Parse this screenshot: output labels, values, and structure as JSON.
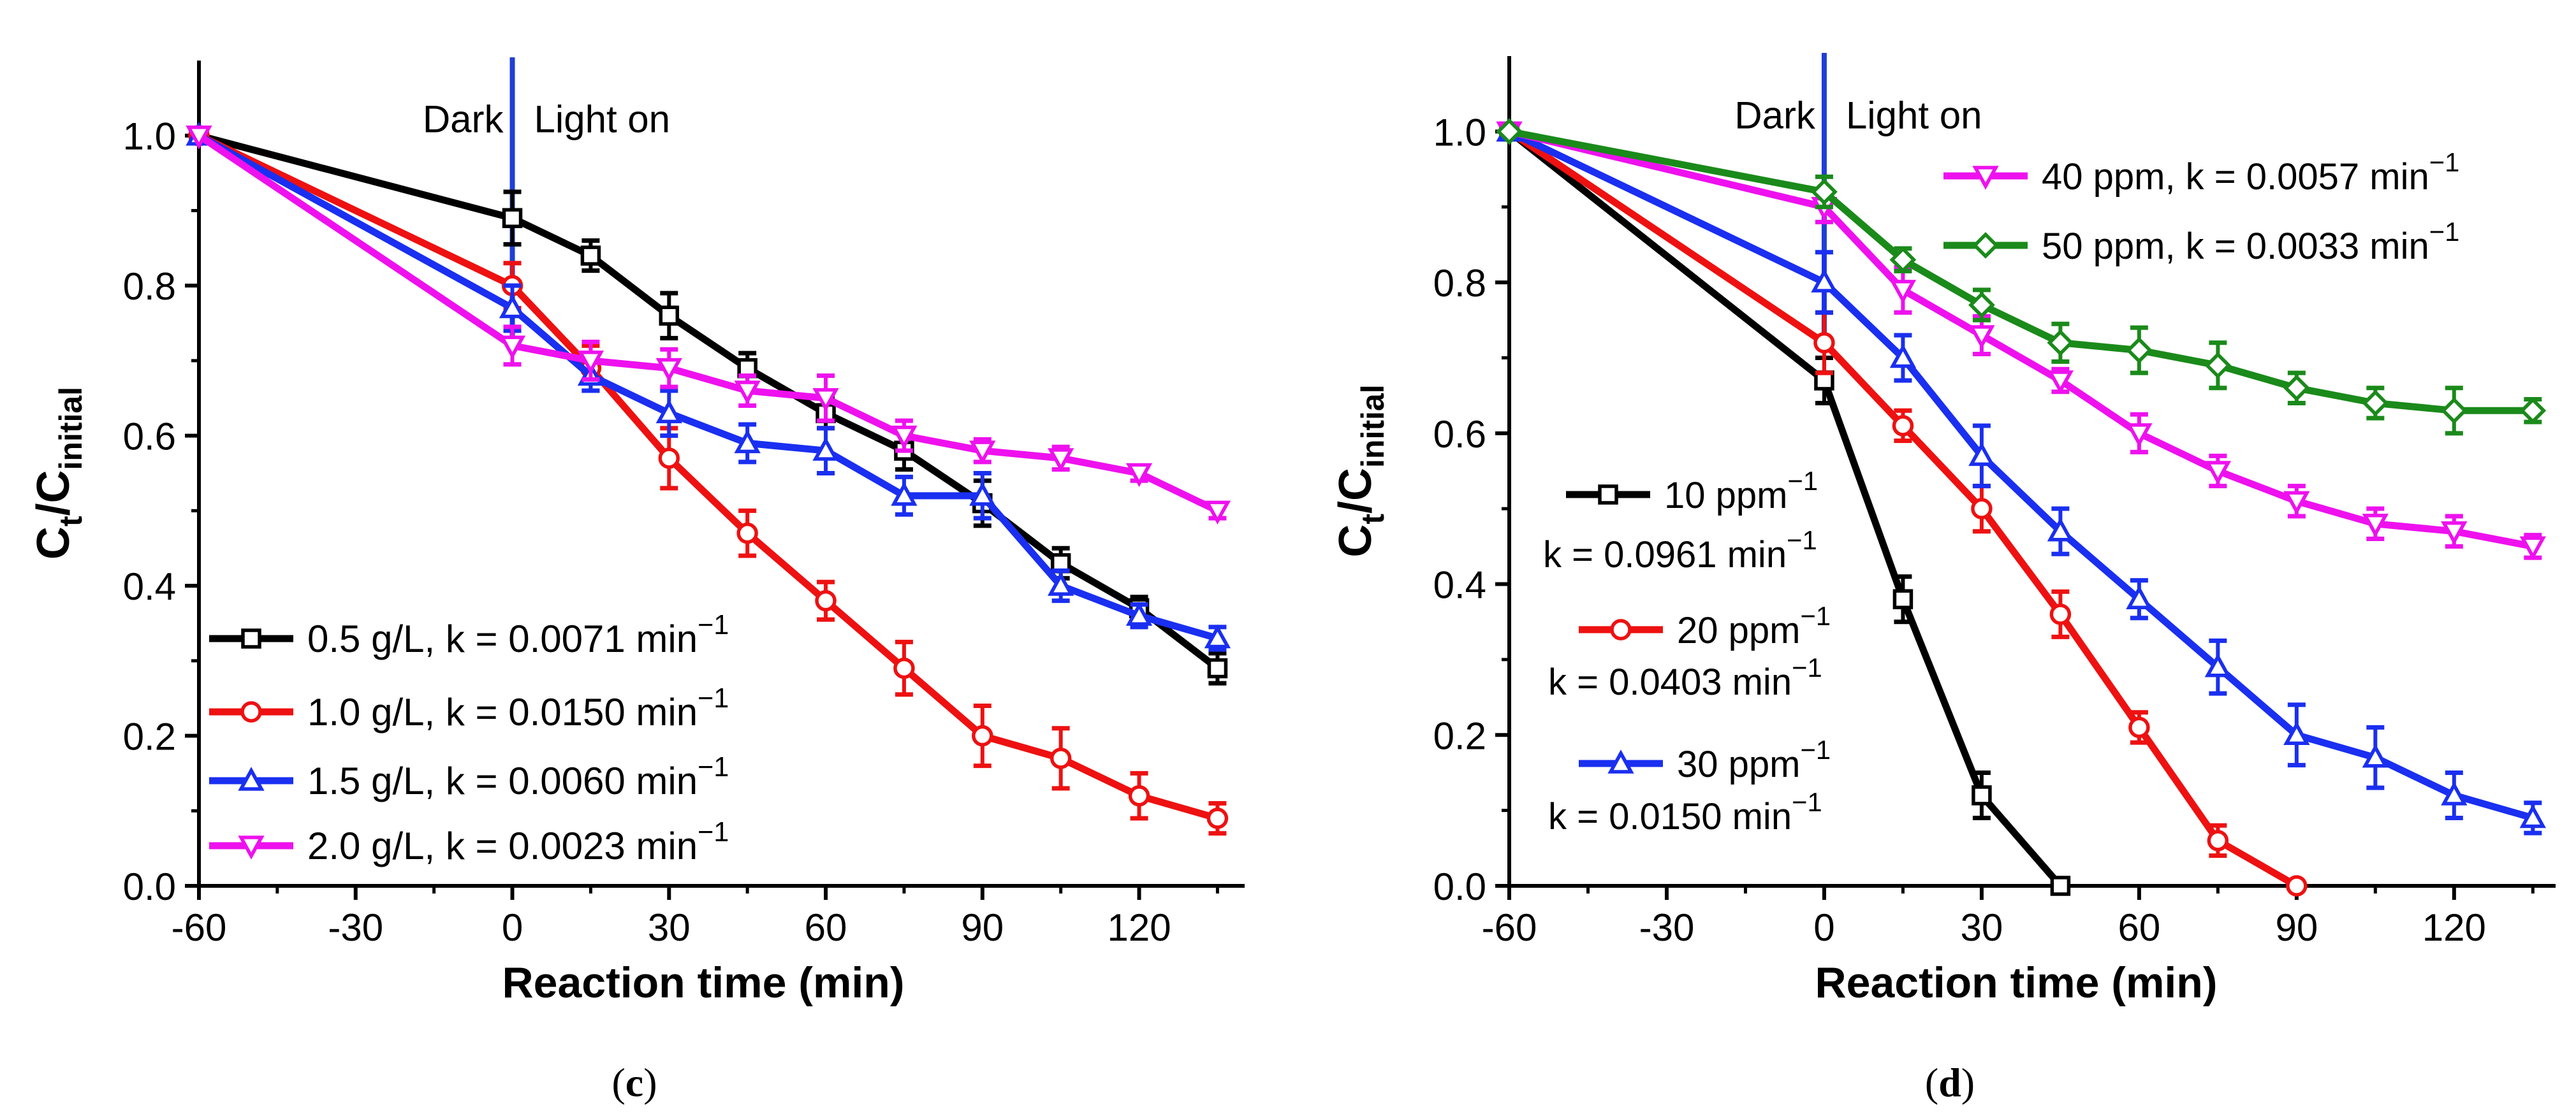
{
  "chart_data": [
    {
      "panel_label": "c",
      "type": "line",
      "xlabel": "Reaction time (min)",
      "ylabel": "C_t/C_initial",
      "ylabel_parts": {
        "main": "C",
        "sub1": "t",
        "slash": "/C",
        "sub2": "initial"
      },
      "xlim": [
        -60,
        138
      ],
      "ylim": [
        0,
        1.1
      ],
      "xticks": [
        -60,
        -30,
        0,
        30,
        60,
        90,
        120
      ],
      "yticks": [
        0.0,
        0.2,
        0.4,
        0.6,
        0.8,
        1.0
      ],
      "ytick_labels": [
        "0.0",
        "0.2",
        "0.4",
        "0.6",
        "0.8",
        "1.0"
      ],
      "annotations": {
        "dark": "Dark",
        "light": "Light on",
        "divider_x": 0,
        "divider_color": "#1f3fd6"
      },
      "legend_placement": "bottom-left",
      "series": [
        {
          "name": "0.5 g/L, k = 0.0071 min",
          "name_sup": "−1",
          "color": "#000000",
          "marker": "square",
          "x": [
            -60,
            0,
            15,
            30,
            45,
            60,
            75,
            90,
            105,
            120,
            135
          ],
          "y": [
            1.0,
            0.89,
            0.84,
            0.76,
            0.69,
            0.63,
            0.58,
            0.51,
            0.43,
            0.37,
            0.29
          ],
          "err": [
            0,
            0.035,
            0.02,
            0.03,
            0.02,
            0.02,
            0.025,
            0.03,
            0.02,
            0.015,
            0.02
          ]
        },
        {
          "name": "1.0 g/L, k = 0.0150 min",
          "name_sup": "−1",
          "color": "#ee1111",
          "marker": "circle",
          "x": [
            -60,
            0,
            15,
            30,
            45,
            60,
            75,
            90,
            105,
            120,
            135
          ],
          "y": [
            1.0,
            0.8,
            0.69,
            0.57,
            0.47,
            0.38,
            0.29,
            0.2,
            0.17,
            0.12,
            0.09
          ],
          "err": [
            0,
            0.03,
            0.03,
            0.04,
            0.03,
            0.025,
            0.035,
            0.04,
            0.04,
            0.03,
            0.02
          ]
        },
        {
          "name": "1.5 g/L, k = 0.0060 min",
          "name_sup": "−1",
          "color": "#1a2ff0",
          "marker": "triangle-up",
          "x": [
            -60,
            0,
            15,
            30,
            45,
            60,
            75,
            90,
            105,
            120,
            135
          ],
          "y": [
            1.0,
            0.77,
            0.68,
            0.63,
            0.59,
            0.58,
            0.52,
            0.52,
            0.4,
            0.36,
            0.33
          ],
          "err": [
            0,
            0.03,
            0.02,
            0.03,
            0.025,
            0.03,
            0.025,
            0.03,
            0.02,
            0.015,
            0.015
          ]
        },
        {
          "name": "2.0 g/L, k = 0.0023 min",
          "name_sup": "−1",
          "color": "#ee11ee",
          "marker": "triangle-down",
          "x": [
            -60,
            0,
            15,
            30,
            45,
            60,
            75,
            90,
            105,
            120,
            135
          ],
          "y": [
            1.0,
            0.72,
            0.7,
            0.69,
            0.66,
            0.65,
            0.6,
            0.58,
            0.57,
            0.55,
            0.5
          ],
          "err": [
            0,
            0.025,
            0.025,
            0.025,
            0.02,
            0.03,
            0.02,
            0.015,
            0.015,
            0.01,
            0.01
          ]
        }
      ]
    },
    {
      "panel_label": "d",
      "type": "line",
      "xlabel": "Reaction time (min)",
      "ylabel": "C_t/C_initial",
      "ylabel_parts": {
        "main": "C",
        "sub1": "t",
        "slash": "/C",
        "sub2": "initial"
      },
      "xlim": [
        -60,
        138
      ],
      "ylim": [
        0,
        1.1
      ],
      "xticks": [
        -60,
        -30,
        0,
        30,
        60,
        90,
        120
      ],
      "yticks": [
        0.0,
        0.2,
        0.4,
        0.6,
        0.8,
        1.0
      ],
      "ytick_labels": [
        "0.0",
        "0.2",
        "0.4",
        "0.6",
        "0.8",
        "1.0"
      ],
      "annotations": {
        "dark": "Dark",
        "light": "Light on",
        "divider_x": 0,
        "divider_color": "#1f3fd6"
      },
      "legend_placement": "left (three entries) and top-right (two entries)",
      "series": [
        {
          "name": "10 ppm",
          "k_text": "k = 0.0961 min",
          "name_sup": "−1",
          "color": "#000000",
          "marker": "square",
          "x": [
            -60,
            0,
            15,
            30,
            45
          ],
          "y": [
            1.0,
            0.67,
            0.38,
            0.12,
            0.0
          ],
          "err": [
            0,
            0.03,
            0.03,
            0.03,
            0.01
          ]
        },
        {
          "name": "20 ppm",
          "k_text": "k = 0.0403 min",
          "name_sup": "−1",
          "color": "#ee1111",
          "marker": "circle",
          "x": [
            -60,
            0,
            15,
            30,
            45,
            60,
            75,
            90
          ],
          "y": [
            1.0,
            0.72,
            0.61,
            0.5,
            0.36,
            0.21,
            0.06,
            0.0
          ],
          "err": [
            0,
            0.04,
            0.02,
            0.03,
            0.03,
            0.02,
            0.02,
            0.005
          ]
        },
        {
          "name": "30 ppm",
          "k_text": "k = 0.0150 min",
          "name_sup": "−1",
          "color": "#1a2ff0",
          "marker": "triangle-up",
          "x": [
            -60,
            0,
            15,
            30,
            45,
            60,
            75,
            90,
            105,
            120,
            135
          ],
          "y": [
            1.0,
            0.8,
            0.7,
            0.57,
            0.47,
            0.38,
            0.29,
            0.2,
            0.17,
            0.12,
            0.09
          ],
          "err": [
            0,
            0.04,
            0.03,
            0.04,
            0.03,
            0.025,
            0.035,
            0.04,
            0.04,
            0.03,
            0.02
          ]
        },
        {
          "name": "40 ppm, k = 0.0057 min",
          "name_sup": "−1",
          "color": "#ee11ee",
          "marker": "triangle-down",
          "x": [
            -60,
            0,
            15,
            30,
            45,
            60,
            75,
            90,
            105,
            120,
            135
          ],
          "y": [
            1.0,
            0.9,
            0.79,
            0.73,
            0.67,
            0.6,
            0.55,
            0.51,
            0.48,
            0.47,
            0.45
          ],
          "err": [
            0,
            0.02,
            0.03,
            0.025,
            0.015,
            0.025,
            0.02,
            0.02,
            0.02,
            0.02,
            0.015
          ]
        },
        {
          "name": "50 ppm, k = 0.0033 min",
          "name_sup": "−1",
          "color": "#1a8a1a",
          "marker": "diamond",
          "x": [
            -60,
            0,
            15,
            30,
            45,
            60,
            75,
            90,
            105,
            120,
            135
          ],
          "y": [
            1.0,
            0.92,
            0.83,
            0.77,
            0.72,
            0.71,
            0.69,
            0.66,
            0.64,
            0.63,
            0.63
          ],
          "err": [
            0,
            0.02,
            0.015,
            0.02,
            0.025,
            0.03,
            0.03,
            0.02,
            0.02,
            0.03,
            0.015
          ]
        }
      ]
    }
  ]
}
